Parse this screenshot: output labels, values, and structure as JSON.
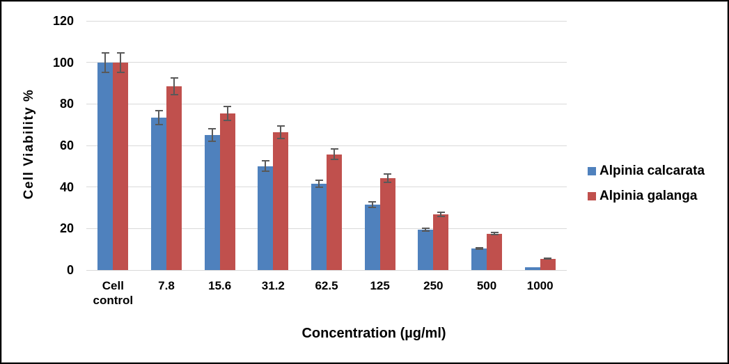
{
  "chart_data": {
    "type": "bar",
    "categories": [
      "Cell control",
      "7.8",
      "15.6",
      "31.2",
      "62.5",
      "125",
      "250",
      "500",
      "1000"
    ],
    "series": [
      {
        "name": "Alpinia calcarata",
        "color": "#4F81BD",
        "values": [
          100,
          73.5,
          65,
          50,
          41.5,
          31.5,
          19.3,
          10.4,
          1.3
        ],
        "errors": [
          5,
          3.7,
          3.4,
          2.8,
          2,
          1.8,
          1,
          0.8,
          0
        ]
      },
      {
        "name": "Alpinia galanga",
        "color": "#C0504D",
        "values": [
          100,
          88.5,
          75.3,
          66.4,
          55.8,
          44.3,
          26.8,
          17.5,
          5.5
        ],
        "errors": [
          5,
          4.4,
          3.7,
          3.3,
          2.8,
          2.3,
          1.4,
          0.9,
          0.5
        ]
      }
    ],
    "xlabel": "Concentration (µg/ml)",
    "ylabel": "Cell Viability %",
    "ylim": [
      0,
      120
    ],
    "yticks": [
      0,
      20,
      40,
      60,
      80,
      100,
      120
    ],
    "grid": true,
    "legend_position": "right",
    "error_bar_color": "#595959",
    "gridline_color": "#D9D9D9"
  }
}
